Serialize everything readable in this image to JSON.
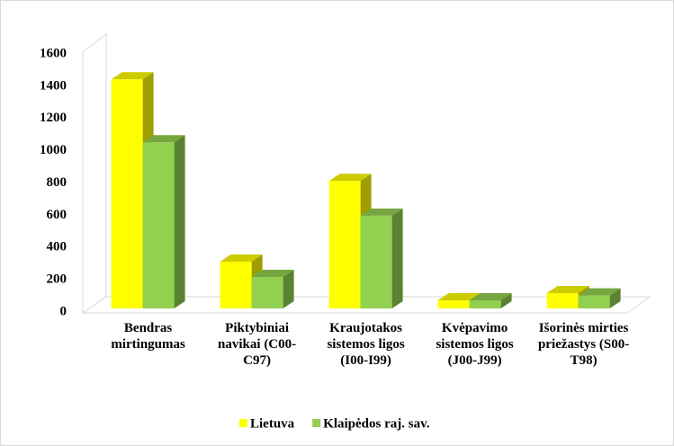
{
  "chart_data": {
    "type": "bar3d",
    "categories": [
      "Bendras mirtingumas",
      "Piktybiniai navikai (C00-C97)",
      "Kraujotakos sistemos ligos (I00-I99)",
      "Kvėpavimo sistemos ligos (J00-J99)",
      "Išorinės mirties priežastys (S00-T98)"
    ],
    "series": [
      {
        "name": "Lietuva",
        "color": "#ffff00",
        "values": [
          1420,
          290,
          790,
          50,
          95
        ]
      },
      {
        "name": "Klaipėdos raj. sav.",
        "color": "#92d050",
        "values": [
          1030,
          195,
          575,
          50,
          80
        ]
      }
    ],
    "ylim": [
      0,
      1600
    ],
    "yticks": [
      0,
      200,
      400,
      600,
      800,
      1000,
      1200,
      1400,
      1600
    ],
    "legend": "bottom"
  }
}
